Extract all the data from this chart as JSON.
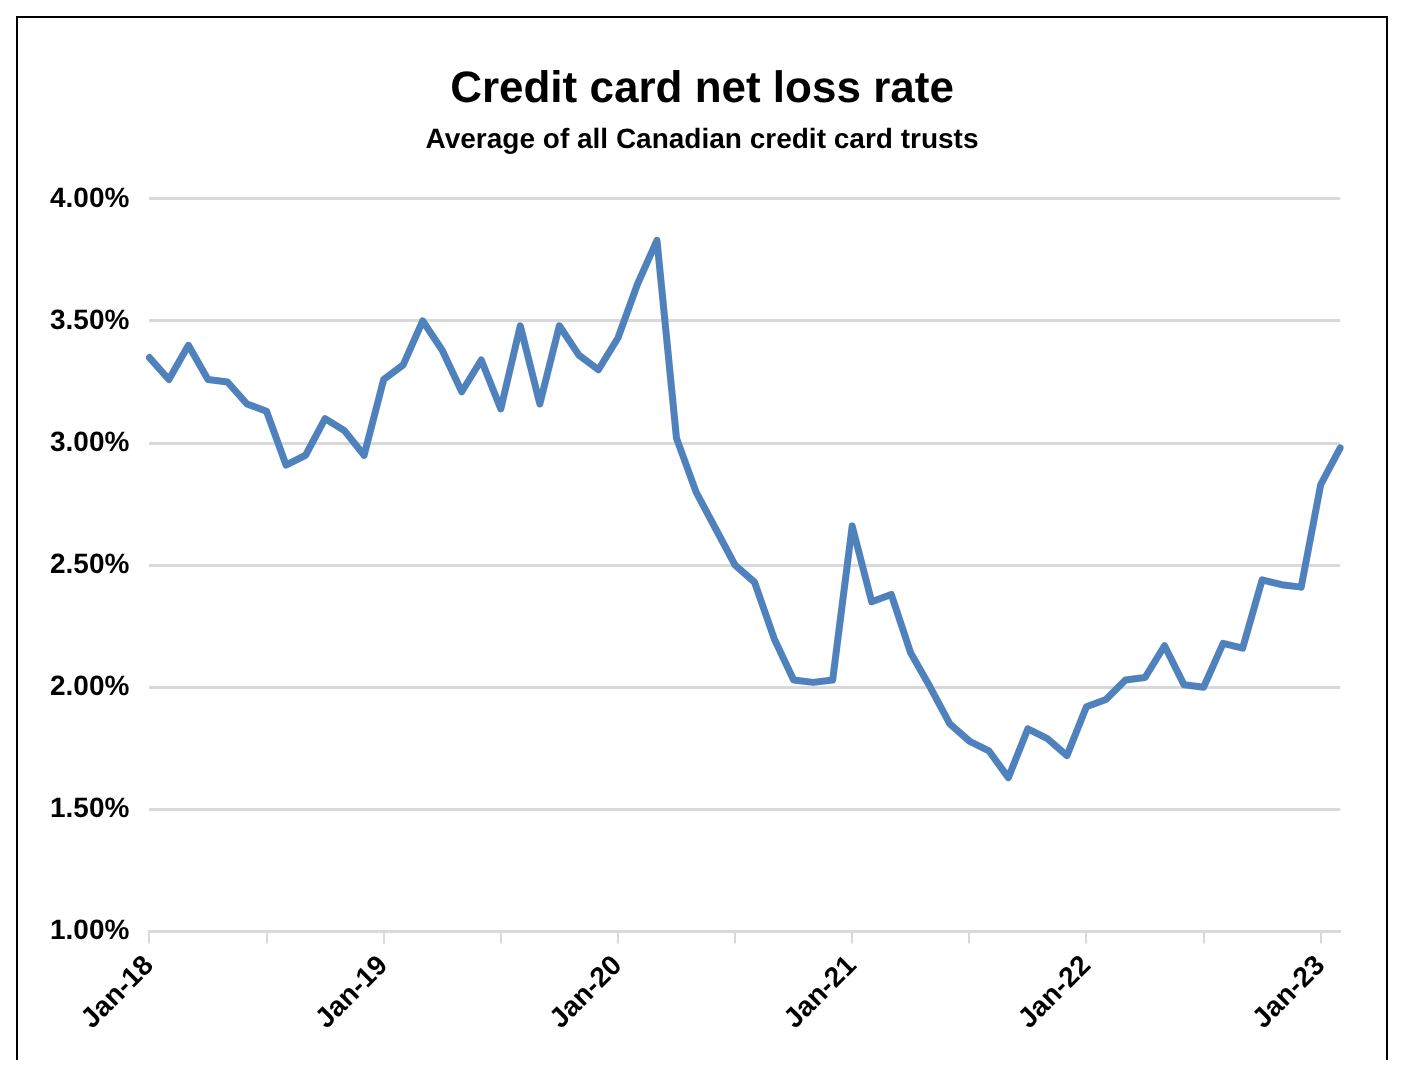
{
  "chart_data": {
    "type": "line",
    "title": "Credit card net loss rate",
    "subtitle": "Average of all Canadian credit card trusts",
    "categories": [
      "Jan-18",
      null,
      null,
      null,
      null,
      null,
      null,
      null,
      null,
      null,
      null,
      null,
      "Jan-19",
      null,
      null,
      null,
      null,
      null,
      null,
      null,
      null,
      null,
      null,
      null,
      "Jan-20",
      null,
      null,
      null,
      null,
      null,
      null,
      null,
      null,
      null,
      null,
      null,
      "Jan-21",
      null,
      null,
      null,
      null,
      null,
      null,
      null,
      null,
      null,
      null,
      null,
      "Jan-22",
      null,
      null,
      null,
      null,
      null,
      null,
      null,
      null,
      null,
      null,
      null,
      "Jan-23",
      null
    ],
    "series": [
      {
        "color": "#4f81bd",
        "values": [
          3.35,
          3.26,
          3.4,
          3.26,
          3.25,
          3.16,
          3.13,
          2.91,
          2.95,
          3.1,
          3.05,
          2.95,
          3.26,
          3.32,
          3.5,
          3.38,
          3.21,
          3.34,
          3.14,
          3.48,
          3.16,
          3.48,
          3.36,
          3.3,
          3.43,
          3.65,
          3.83,
          3.02,
          2.8,
          2.65,
          2.5,
          2.43,
          2.2,
          2.03,
          2.02,
          2.03,
          2.66,
          2.35,
          2.38,
          2.14,
          2.0,
          1.85,
          1.78,
          1.74,
          1.63,
          1.83,
          1.79,
          1.72,
          1.92,
          1.95,
          2.03,
          2.04,
          2.17,
          2.01,
          2.0,
          2.18,
          2.16,
          2.44,
          2.42,
          2.41,
          2.83,
          2.98
        ]
      }
    ],
    "ylim": [
      1,
      4
    ],
    "yticks": [
      {
        "value": 1,
        "label": "1.00%"
      },
      {
        "value": 1.5,
        "label": "1.50%"
      },
      {
        "value": 2,
        "label": "2.00%"
      },
      {
        "value": 2.5,
        "label": "2.50%"
      },
      {
        "value": 3,
        "label": "3.00%"
      },
      {
        "value": 3.5,
        "label": "3.50%"
      },
      {
        "value": 4,
        "label": "4.00%"
      }
    ],
    "grid": "y",
    "legend": false,
    "marker": "none",
    "line_style": "solid"
  }
}
